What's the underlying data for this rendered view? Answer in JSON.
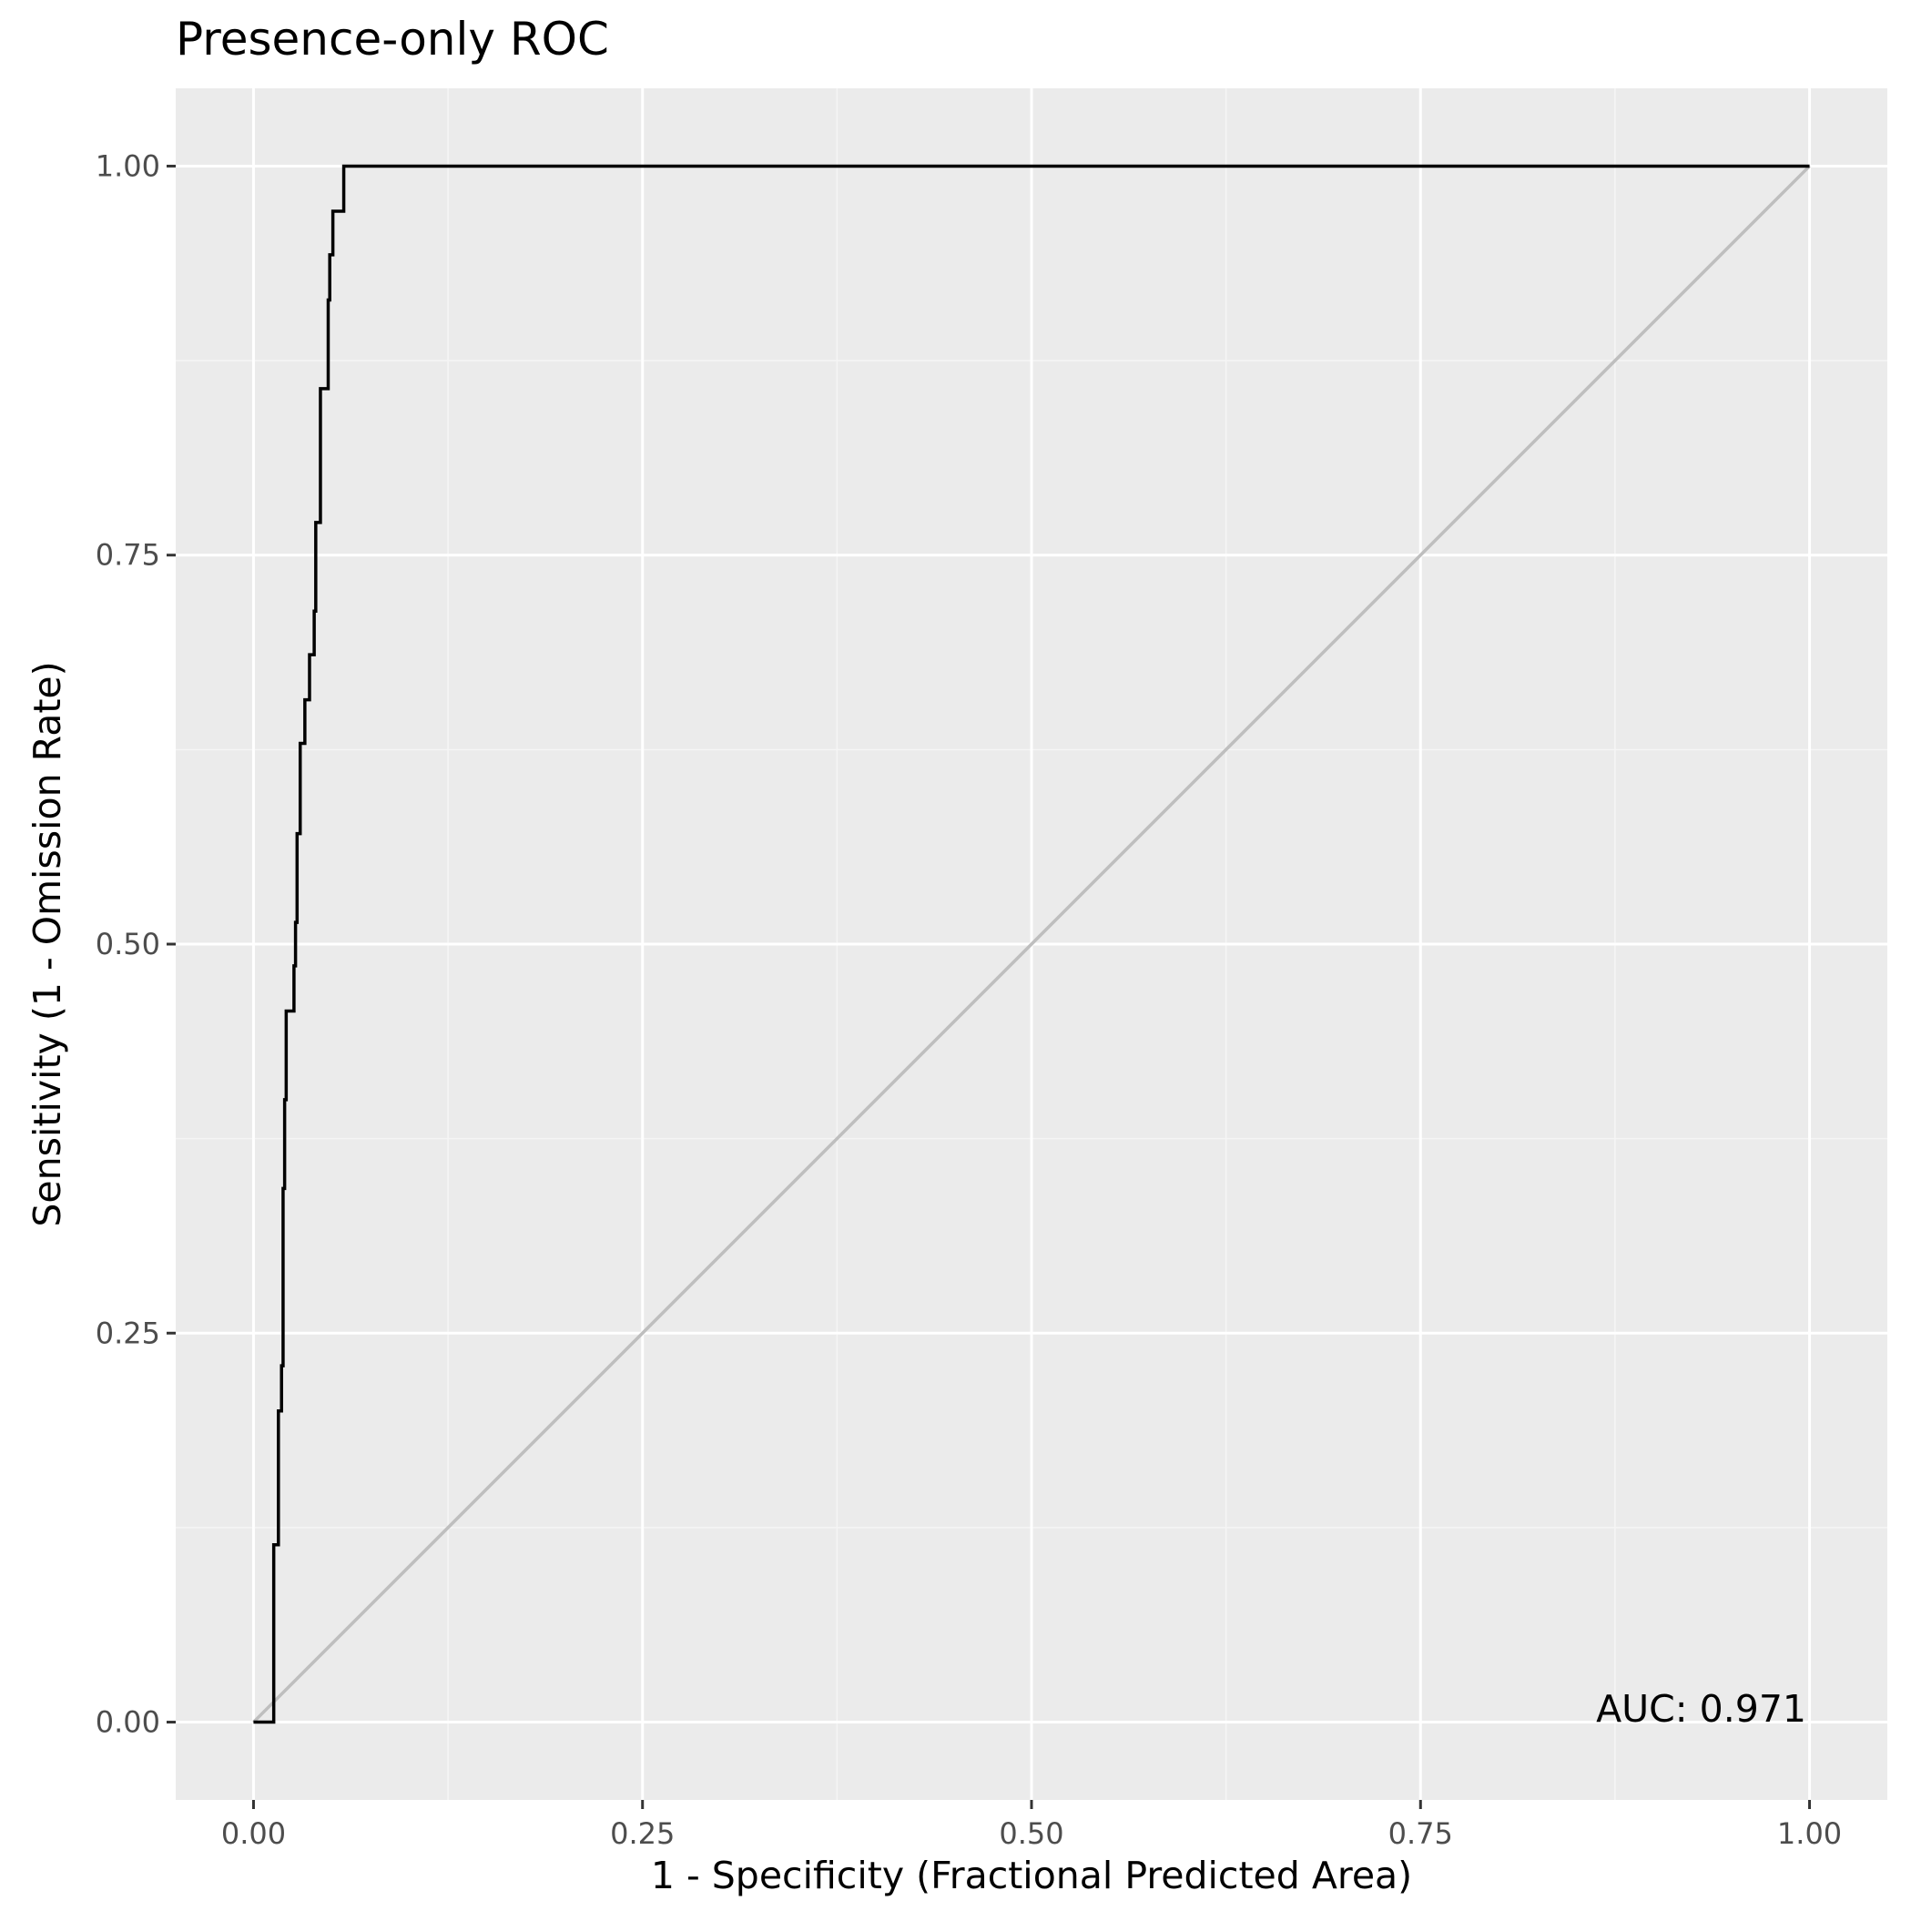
{
  "chart_data": {
    "type": "line",
    "title": "Presence-only ROC",
    "xlabel": "1 - Specificity (Fractional Predicted Area)",
    "ylabel": "Sensitivity (1 - Omission Rate)",
    "xlim": [
      -0.05,
      1.05
    ],
    "ylim": [
      -0.05,
      1.05
    ],
    "x_ticks": [
      0,
      0.25,
      0.5,
      0.75,
      1
    ],
    "x_tick_labels": [
      "0.00",
      "0.25",
      "0.50",
      "0.75",
      "1.00"
    ],
    "y_ticks": [
      0,
      0.25,
      0.5,
      0.75,
      1
    ],
    "y_tick_labels": [
      "0.00",
      "0.25",
      "0.50",
      "0.75",
      "1.00"
    ],
    "grid": true,
    "colors": {
      "panel_background": "#ebebeb",
      "grid_major": "#ffffff",
      "grid_minor": "#f5f5f5",
      "roc_line": "#000000",
      "reference_line": "#bebebe"
    },
    "annotation": "AUC: 0.971",
    "series": [
      {
        "role": "roc",
        "points": [
          [
            0.0,
            0.0
          ],
          [
            0.013,
            0.0
          ],
          [
            0.013,
            0.114
          ],
          [
            0.016,
            0.114
          ],
          [
            0.016,
            0.2
          ],
          [
            0.018,
            0.2
          ],
          [
            0.018,
            0.229
          ],
          [
            0.019,
            0.229
          ],
          [
            0.019,
            0.343
          ],
          [
            0.02,
            0.343
          ],
          [
            0.02,
            0.4
          ],
          [
            0.021,
            0.4
          ],
          [
            0.021,
            0.457
          ],
          [
            0.026,
            0.457
          ],
          [
            0.026,
            0.486
          ],
          [
            0.027,
            0.486
          ],
          [
            0.027,
            0.514
          ],
          [
            0.028,
            0.514
          ],
          [
            0.028,
            0.571
          ],
          [
            0.03,
            0.571
          ],
          [
            0.03,
            0.629
          ],
          [
            0.033,
            0.629
          ],
          [
            0.033,
            0.657
          ],
          [
            0.036,
            0.657
          ],
          [
            0.036,
            0.686
          ],
          [
            0.039,
            0.686
          ],
          [
            0.039,
            0.714
          ],
          [
            0.04,
            0.714
          ],
          [
            0.04,
            0.771
          ],
          [
            0.043,
            0.771
          ],
          [
            0.043,
            0.857
          ],
          [
            0.048,
            0.857
          ],
          [
            0.048,
            0.914
          ],
          [
            0.049,
            0.914
          ],
          [
            0.049,
            0.943
          ],
          [
            0.051,
            0.943
          ],
          [
            0.051,
            0.971
          ],
          [
            0.058,
            0.971
          ],
          [
            0.058,
            1.0
          ],
          [
            1.0,
            1.0
          ]
        ]
      },
      {
        "role": "reference",
        "points": [
          [
            0,
            0
          ],
          [
            1,
            1
          ]
        ]
      }
    ]
  }
}
